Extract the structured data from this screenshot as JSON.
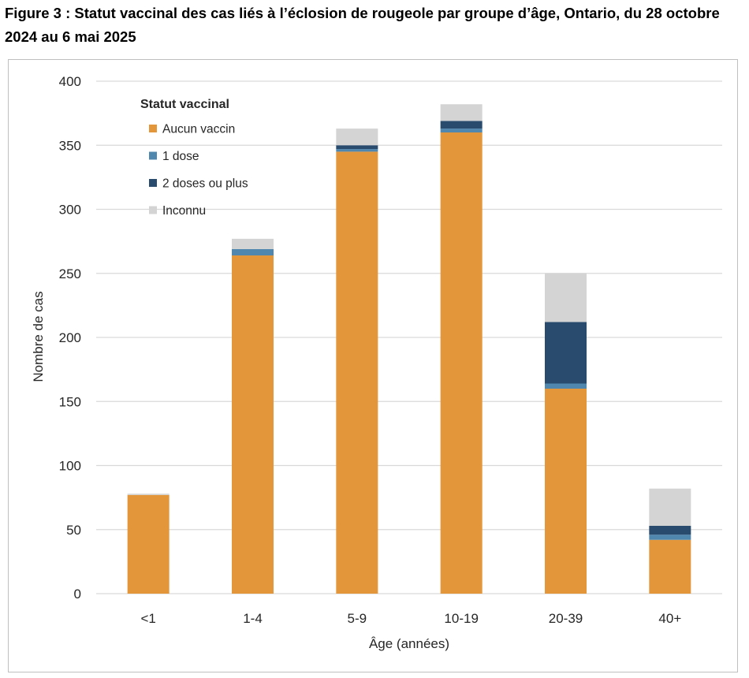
{
  "figure": {
    "title": "Figure 3 : Statut vaccinal des cas liés à l’éclosion de rougeole par groupe d’âge, Ontario, du 28 octobre 2024 au 6 mai 2025"
  },
  "chart_data": {
    "type": "bar",
    "stacked": true,
    "title": "",
    "xlabel": "Âge (années)",
    "ylabel": "Nombre de cas",
    "ylim": [
      0,
      400
    ],
    "yticks": [
      0,
      50,
      100,
      150,
      200,
      250,
      300,
      350,
      400
    ],
    "grid": true,
    "legend_title": "Statut vaccinal",
    "legend_position": "top-left",
    "categories": [
      "<1",
      "1-4",
      "5-9",
      "10-19",
      "20-39",
      "40+"
    ],
    "series": [
      {
        "name": "Aucun vaccin",
        "color": "#E3963A",
        "values": [
          77,
          264,
          345,
          360,
          160,
          42
        ]
      },
      {
        "name": "1 dose",
        "color": "#4F87AE",
        "values": [
          0,
          5,
          2,
          3,
          4,
          4
        ]
      },
      {
        "name": "2 doses ou plus",
        "color": "#284B6E",
        "values": [
          0,
          0,
          3,
          6,
          48,
          7
        ]
      },
      {
        "name": "Inconnu",
        "color": "#D4D4D4",
        "values": [
          1,
          8,
          13,
          13,
          38,
          29
        ]
      }
    ]
  }
}
